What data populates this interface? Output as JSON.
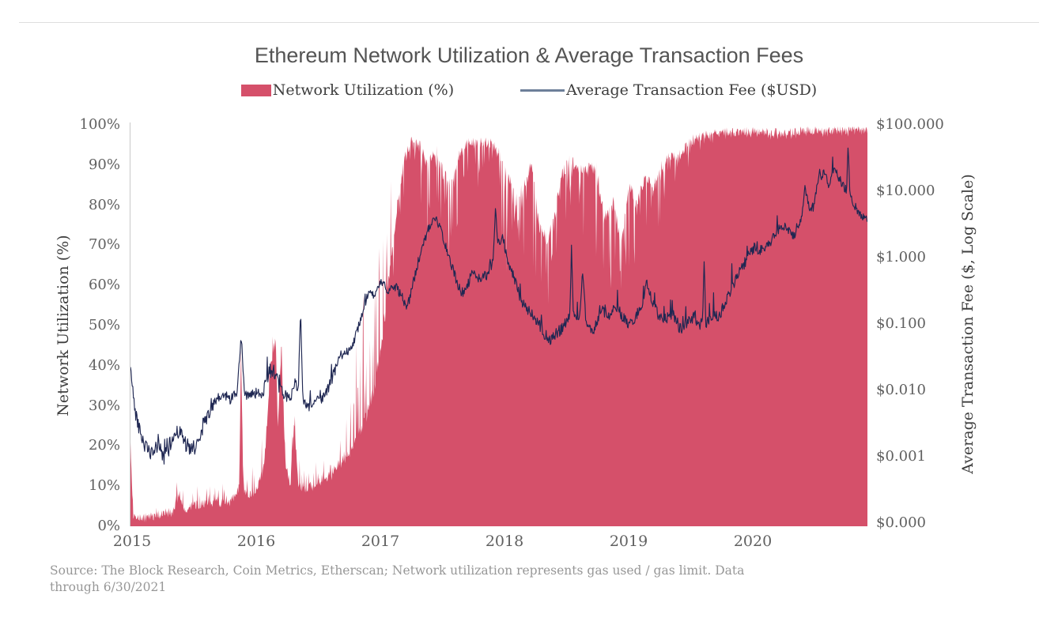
{
  "title": "Ethereum Network Utilization & Average Transaction Fees",
  "legend": [
    {
      "label": "Network Utilization (%)",
      "color": "#D5506A",
      "type": "area"
    },
    {
      "label": "Average Transaction Fee ($USD)",
      "color": "#6D7F99",
      "type": "line"
    }
  ],
  "source_note": {
    "line1": "Source: The Block Research, Coin Metrics, Etherscan; Network utilization represents gas used / gas limit. Data",
    "line2": "through 6/30/2021"
  },
  "chart_data": {
    "type": "area+line",
    "dual_axis": true,
    "grid": false,
    "legend_position": "top-center",
    "title": "Ethereum Network Utilization & Average Transaction Fees",
    "x_axis": {
      "ticks": [
        "2015",
        "2016",
        "2017",
        "2018",
        "2019",
        "2020"
      ],
      "range": [
        2015.0,
        2021.5
      ]
    },
    "left_axis": {
      "label": "Network Utilization (%)",
      "range": [
        0,
        100
      ],
      "ticks": [
        "100%",
        "90%",
        "80%",
        "70%",
        "60%",
        "50%",
        "40%",
        "30%",
        "20%",
        "10%",
        "0%"
      ]
    },
    "right_axis": {
      "label": "Average Transaction Fee ($, Log Scale)",
      "scale": "log",
      "range": [
        0.0001,
        100
      ],
      "ticks": [
        "$100.000",
        "$10.000",
        "$1.000",
        "$0.100",
        "$0.010",
        "$0.001",
        "$0.000"
      ]
    },
    "series": [
      {
        "name": "Network Utilization (%)",
        "type": "area",
        "axis": "left",
        "color": "#D5506A",
        "points_format": [
          "decimal_year",
          "percent",
          "spike_envelope_percent"
        ],
        "points": [
          [
            2015.0,
            20,
            3
          ],
          [
            2015.025,
            2.5,
            1.5
          ],
          [
            2015.1,
            2,
            1.5
          ],
          [
            2015.2,
            2.5,
            2
          ],
          [
            2015.3,
            3,
            2.5
          ],
          [
            2015.38,
            3.5,
            5
          ],
          [
            2015.43,
            8,
            4
          ],
          [
            2015.48,
            4,
            3
          ],
          [
            2015.55,
            5,
            5
          ],
          [
            2015.62,
            5,
            6
          ],
          [
            2015.68,
            6,
            6
          ],
          [
            2015.74,
            5,
            5
          ],
          [
            2015.81,
            6,
            5
          ],
          [
            2015.88,
            6,
            6
          ],
          [
            2015.93,
            7,
            5
          ],
          [
            2015.96,
            10,
            5
          ],
          [
            2015.975,
            45,
            3
          ],
          [
            2015.995,
            8,
            5
          ],
          [
            2016.05,
            7,
            8
          ],
          [
            2016.12,
            9,
            9
          ],
          [
            2016.18,
            15,
            12
          ],
          [
            2016.24,
            40,
            9
          ],
          [
            2016.28,
            46,
            5
          ],
          [
            2016.3,
            24,
            10
          ],
          [
            2016.33,
            44,
            6
          ],
          [
            2016.37,
            14,
            8
          ],
          [
            2016.41,
            10,
            6
          ],
          [
            2016.445,
            26,
            5
          ],
          [
            2016.48,
            10,
            6
          ],
          [
            2016.56,
            9,
            5
          ],
          [
            2016.63,
            10,
            7
          ],
          [
            2016.71,
            11,
            9
          ],
          [
            2016.79,
            13,
            11
          ],
          [
            2016.87,
            16,
            9
          ],
          [
            2016.94,
            18,
            14
          ],
          [
            2017.01,
            22,
            30
          ],
          [
            2017.08,
            26,
            36
          ],
          [
            2017.15,
            33,
            34
          ],
          [
            2017.22,
            45,
            30
          ],
          [
            2017.28,
            60,
            25
          ],
          [
            2017.35,
            80,
            17
          ],
          [
            2017.42,
            93,
            10
          ],
          [
            2017.48,
            97,
            6
          ],
          [
            2017.55,
            96,
            22
          ],
          [
            2017.62,
            91,
            26
          ],
          [
            2017.69,
            95,
            12
          ],
          [
            2017.76,
            89,
            28
          ],
          [
            2017.83,
            86,
            26
          ],
          [
            2017.9,
            93,
            14
          ],
          [
            2017.97,
            96,
            10
          ],
          [
            2018.05,
            96,
            12
          ],
          [
            2018.12,
            96,
            8
          ],
          [
            2018.19,
            96,
            10
          ],
          [
            2018.26,
            94,
            20
          ],
          [
            2018.33,
            89,
            30
          ],
          [
            2018.4,
            82,
            26
          ],
          [
            2018.47,
            86,
            22
          ],
          [
            2018.54,
            92,
            26
          ],
          [
            2018.61,
            76,
            24
          ],
          [
            2018.68,
            72,
            18
          ],
          [
            2018.74,
            78,
            20
          ],
          [
            2018.8,
            88,
            22
          ],
          [
            2018.87,
            92,
            14
          ],
          [
            2018.94,
            91,
            24
          ],
          [
            2019.02,
            90,
            18
          ],
          [
            2019.1,
            92,
            26
          ],
          [
            2019.18,
            78,
            26
          ],
          [
            2019.26,
            82,
            24
          ],
          [
            2019.33,
            72,
            18
          ],
          [
            2019.4,
            87,
            22
          ],
          [
            2019.47,
            81,
            24
          ],
          [
            2019.54,
            89,
            18
          ],
          [
            2019.61,
            85,
            24
          ],
          [
            2019.68,
            90,
            14
          ],
          [
            2019.75,
            93,
            12
          ],
          [
            2019.82,
            92,
            16
          ],
          [
            2019.89,
            95,
            7
          ],
          [
            2019.96,
            96.5,
            4
          ],
          [
            2020.05,
            97.5,
            3
          ],
          [
            2020.15,
            98,
            2
          ],
          [
            2020.3,
            98.3,
            1.5
          ],
          [
            2020.5,
            98.5,
            1.5
          ],
          [
            2020.7,
            98.3,
            2
          ],
          [
            2020.9,
            98.6,
            1.5
          ],
          [
            2021.1,
            98.7,
            1.5
          ],
          [
            2021.3,
            98.8,
            1.5
          ],
          [
            2021.5,
            98.8,
            1.5
          ]
        ]
      },
      {
        "name": "Average Transaction Fee ($USD)",
        "type": "line",
        "axis": "right",
        "color": "#1F2752",
        "points_format": [
          "decimal_year",
          "usd",
          "jitter_log10"
        ],
        "points": [
          [
            2015.0,
            0.022,
            0.04
          ],
          [
            2015.04,
            0.005,
            0.1
          ],
          [
            2015.09,
            0.0022,
            0.12
          ],
          [
            2015.14,
            0.0013,
            0.12
          ],
          [
            2015.2,
            0.001,
            0.12
          ],
          [
            2015.25,
            0.0018,
            0.14
          ],
          [
            2015.29,
            0.0009,
            0.12
          ],
          [
            2015.35,
            0.0015,
            0.13
          ],
          [
            2015.41,
            0.0026,
            0.12
          ],
          [
            2015.46,
            0.002,
            0.12
          ],
          [
            2015.52,
            0.0012,
            0.14
          ],
          [
            2015.58,
            0.0014,
            0.13
          ],
          [
            2015.64,
            0.003,
            0.12
          ],
          [
            2015.7,
            0.0048,
            0.1
          ],
          [
            2015.76,
            0.007,
            0.09
          ],
          [
            2015.82,
            0.0085,
            0.09
          ],
          [
            2015.88,
            0.0075,
            0.09
          ],
          [
            2015.94,
            0.009,
            0.08
          ],
          [
            2015.975,
            0.06,
            0.03
          ],
          [
            2016.01,
            0.008,
            0.08
          ],
          [
            2016.07,
            0.0095,
            0.08
          ],
          [
            2016.13,
            0.0085,
            0.09
          ],
          [
            2016.18,
            0.011,
            0.12
          ],
          [
            2016.22,
            0.02,
            0.12
          ],
          [
            2016.27,
            0.02,
            0.12
          ],
          [
            2016.31,
            0.011,
            0.1
          ],
          [
            2016.36,
            0.0085,
            0.08
          ],
          [
            2016.41,
            0.0075,
            0.08
          ],
          [
            2016.45,
            0.014,
            0.08
          ],
          [
            2016.48,
            0.01,
            0.05
          ],
          [
            2016.5,
            0.16,
            0.02
          ],
          [
            2016.52,
            0.0075,
            0.06
          ],
          [
            2016.56,
            0.0052,
            0.08
          ],
          [
            2016.62,
            0.0068,
            0.08
          ],
          [
            2016.68,
            0.0075,
            0.08
          ],
          [
            2016.74,
            0.01,
            0.09
          ],
          [
            2016.79,
            0.017,
            0.09
          ],
          [
            2016.85,
            0.033,
            0.07
          ],
          [
            2016.92,
            0.04,
            0.07
          ],
          [
            2016.98,
            0.06,
            0.07
          ],
          [
            2017.04,
            0.14,
            0.06
          ],
          [
            2017.1,
            0.3,
            0.06
          ],
          [
            2017.15,
            0.26,
            0.07
          ],
          [
            2017.21,
            0.42,
            0.06
          ],
          [
            2017.27,
            0.33,
            0.07
          ],
          [
            2017.33,
            0.36,
            0.08
          ],
          [
            2017.38,
            0.3,
            0.08
          ],
          [
            2017.44,
            0.17,
            0.07
          ],
          [
            2017.5,
            0.45,
            0.09
          ],
          [
            2017.56,
            1.2,
            0.08
          ],
          [
            2017.63,
            2.8,
            0.06
          ],
          [
            2017.69,
            4.0,
            0.05
          ],
          [
            2017.74,
            2.5,
            0.06
          ],
          [
            2017.8,
            1.1,
            0.08
          ],
          [
            2017.86,
            0.55,
            0.08
          ],
          [
            2017.92,
            0.28,
            0.08
          ],
          [
            2017.97,
            0.4,
            0.09
          ],
          [
            2018.03,
            0.62,
            0.09
          ],
          [
            2018.08,
            0.48,
            0.08
          ],
          [
            2018.15,
            0.55,
            0.09
          ],
          [
            2018.2,
            0.9,
            0.07
          ],
          [
            2018.22,
            6.0,
            0.02
          ],
          [
            2018.24,
            1.6,
            0.07
          ],
          [
            2018.28,
            2.1,
            0.07
          ],
          [
            2018.33,
            0.9,
            0.09
          ],
          [
            2018.39,
            0.45,
            0.08
          ],
          [
            2018.45,
            0.21,
            0.08
          ],
          [
            2018.52,
            0.15,
            0.08
          ],
          [
            2018.59,
            0.11,
            0.08
          ],
          [
            2018.65,
            0.07,
            0.09
          ],
          [
            2018.7,
            0.058,
            0.09
          ],
          [
            2018.75,
            0.07,
            0.09
          ],
          [
            2018.8,
            0.085,
            0.09
          ],
          [
            2018.86,
            0.12,
            0.07
          ],
          [
            2018.875,
            0.13,
            0.05
          ],
          [
            2018.89,
            1.4,
            0.02
          ],
          [
            2018.905,
            0.15,
            0.06
          ],
          [
            2018.96,
            0.12,
            0.06
          ],
          [
            2018.99,
            0.6,
            0.02
          ],
          [
            2019.02,
            0.09,
            0.08
          ],
          [
            2019.08,
            0.078,
            0.08
          ],
          [
            2019.15,
            0.16,
            0.09
          ],
          [
            2019.22,
            0.13,
            0.08
          ],
          [
            2019.29,
            0.18,
            0.09
          ],
          [
            2019.38,
            0.1,
            0.08
          ],
          [
            2019.45,
            0.12,
            0.08
          ],
          [
            2019.52,
            0.22,
            0.09
          ],
          [
            2019.55,
            0.45,
            0.06
          ],
          [
            2019.6,
            0.22,
            0.08
          ],
          [
            2019.66,
            0.13,
            0.08
          ],
          [
            2019.72,
            0.12,
            0.08
          ],
          [
            2019.78,
            0.14,
            0.09
          ],
          [
            2019.85,
            0.085,
            0.09
          ],
          [
            2019.91,
            0.105,
            0.08
          ],
          [
            2019.97,
            0.13,
            0.08
          ],
          [
            2020.02,
            0.095,
            0.08
          ],
          [
            2020.045,
            0.11,
            0.07
          ],
          [
            2020.06,
            0.9,
            0.02
          ],
          [
            2020.075,
            0.1,
            0.07
          ],
          [
            2020.13,
            0.14,
            0.09
          ],
          [
            2020.19,
            0.13,
            0.08
          ],
          [
            2020.25,
            0.22,
            0.09
          ],
          [
            2020.31,
            0.35,
            0.09
          ],
          [
            2020.37,
            0.6,
            0.08
          ],
          [
            2020.44,
            0.95,
            0.09
          ],
          [
            2020.5,
            1.5,
            0.1
          ],
          [
            2020.56,
            1.3,
            0.09
          ],
          [
            2020.62,
            1.4,
            0.09
          ],
          [
            2020.68,
            2.3,
            0.08
          ],
          [
            2020.74,
            3.0,
            0.07
          ],
          [
            2020.8,
            2.7,
            0.07
          ],
          [
            2020.86,
            2.0,
            0.07
          ],
          [
            2020.92,
            4.5,
            0.08
          ],
          [
            2020.95,
            12,
            0.05
          ],
          [
            2020.98,
            6,
            0.07
          ],
          [
            2021.02,
            5.5,
            0.08
          ],
          [
            2021.06,
            14,
            0.08
          ],
          [
            2021.11,
            19,
            0.07
          ],
          [
            2021.16,
            13,
            0.08
          ],
          [
            2021.21,
            21,
            0.07
          ],
          [
            2021.26,
            15,
            0.08
          ],
          [
            2021.3,
            11,
            0.07
          ],
          [
            2021.315,
            9,
            0.05
          ],
          [
            2021.33,
            55,
            0.02
          ],
          [
            2021.345,
            8.5,
            0.05
          ],
          [
            2021.4,
            5.5,
            0.07
          ],
          [
            2021.44,
            4.2,
            0.06
          ],
          [
            2021.5,
            3.8,
            0.05
          ]
        ]
      }
    ]
  }
}
